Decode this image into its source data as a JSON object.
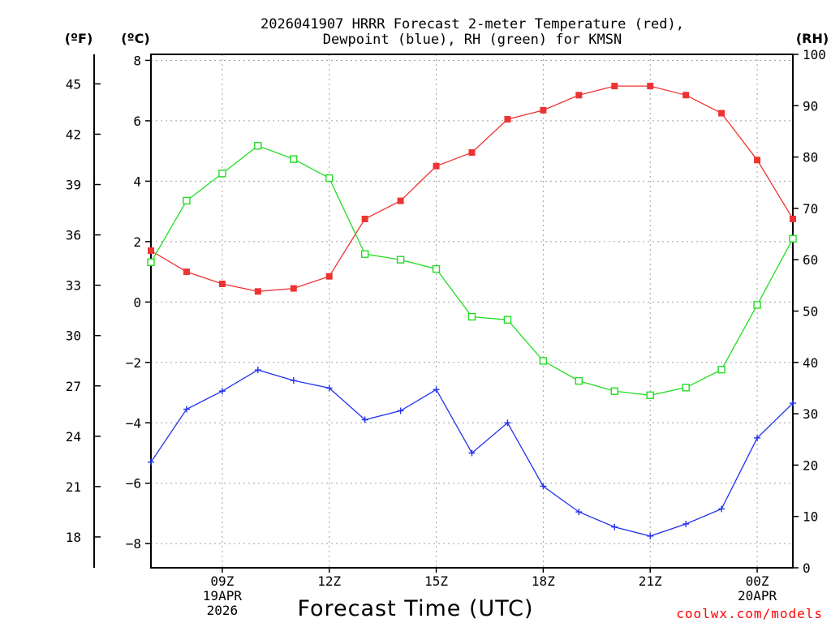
{
  "chart_data": {
    "type": "line",
    "title_line1": "2026041907 HRRR Forecast 2-meter Temperature (red),",
    "title_line2": "Dewpoint (blue), RH (green) for KMSN",
    "xlabel": "Forecast Time (UTC)",
    "credit": "coolwx.com/models",
    "unit_left_f": "(ºF)",
    "unit_left_c": "(ºC)",
    "unit_right": "(RH)",
    "x_hours": [
      7,
      8,
      9,
      10,
      11,
      12,
      13,
      14,
      15,
      16,
      17,
      18,
      19,
      20,
      21,
      22,
      23,
      24,
      25
    ],
    "xlim": [
      7,
      25
    ],
    "x_ticks": [
      {
        "hour": 9,
        "lines": [
          "09Z",
          "19APR",
          "2026"
        ]
      },
      {
        "hour": 12,
        "lines": [
          "12Z"
        ]
      },
      {
        "hour": 15,
        "lines": [
          "15Z"
        ]
      },
      {
        "hour": 18,
        "lines": [
          "18Z"
        ]
      },
      {
        "hour": 21,
        "lines": [
          "21Z"
        ]
      },
      {
        "hour": 24,
        "lines": [
          "00Z",
          "20APR"
        ]
      }
    ],
    "ylim_c": [
      -8.8,
      8.2
    ],
    "y_ticks_c": [
      8,
      6,
      4,
      2,
      0,
      -2,
      -4,
      -6,
      -8
    ],
    "y_tick_labels_c": [
      "8",
      "6",
      "4",
      "2",
      "0",
      "−2",
      "−4",
      "−6",
      "−8"
    ],
    "y_ticks_f": [
      45,
      42,
      39,
      36,
      33,
      30,
      27,
      24,
      21,
      18
    ],
    "ylim_rh": [
      0,
      100
    ],
    "y_ticks_rh": [
      100,
      90,
      80,
      70,
      60,
      50,
      40,
      30,
      20,
      10,
      0
    ],
    "series": [
      {
        "name": "Temperature",
        "axis": "c",
        "color": "#ee3333",
        "marker": "filled-square",
        "values": [
          1.7,
          1.0,
          0.6,
          0.35,
          0.45,
          0.85,
          2.75,
          3.35,
          4.5,
          4.95,
          6.05,
          6.35,
          6.85,
          7.15,
          7.15,
          6.85,
          6.25,
          4.7,
          2.75
        ]
      },
      {
        "name": "Dewpoint",
        "axis": "c",
        "color": "#2233ee",
        "marker": "plus",
        "values": [
          -5.3,
          -3.55,
          -2.95,
          -2.25,
          -2.6,
          -2.85,
          -3.9,
          -3.6,
          -2.9,
          -5.0,
          -4.0,
          -6.1,
          -6.95,
          -7.45,
          -7.75,
          -7.35,
          -6.85,
          -4.5,
          -3.35
        ]
      },
      {
        "name": "RH",
        "axis": "rh",
        "color": "#22dd22",
        "marker": "open-square",
        "values": [
          59.5,
          71.5,
          76.8,
          82.2,
          79.6,
          75.9,
          61.1,
          60.0,
          58.2,
          48.9,
          48.3,
          40.3,
          36.4,
          34.4,
          33.6,
          35.1,
          38.6,
          51.2,
          64.1
        ]
      }
    ]
  }
}
